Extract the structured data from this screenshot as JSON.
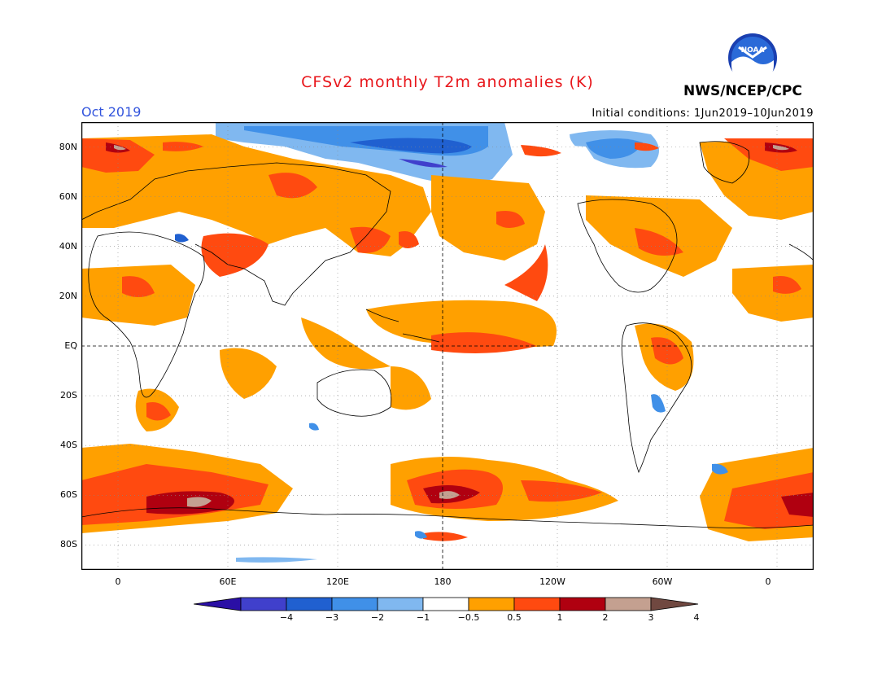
{
  "header": {
    "title": "CFSv2 monthly T2m anomalies (K)",
    "period": "Oct 2019",
    "initial_conditions": "Initial conditions: 1Jun2019–10Jun2019",
    "agency": "NWS/NCEP/CPC",
    "logo_text": "NOAA"
  },
  "map": {
    "type": "global anomaly map",
    "lon_range": [
      -20,
      380
    ],
    "lat_range": [
      -90,
      90
    ],
    "lat_labels": [
      "80N",
      "60N",
      "40N",
      "20N",
      "EQ",
      "20S",
      "40S",
      "60S",
      "80S"
    ],
    "lon_labels": [
      "0",
      "60E",
      "120E",
      "180",
      "120W",
      "60W",
      "0"
    ]
  },
  "colorbar": {
    "labels": [
      "−4",
      "−3",
      "−2",
      "−1",
      "−0.5",
      "0.5",
      "1",
      "2",
      "3",
      "4"
    ],
    "colors": [
      "#2a0fa5",
      "#4040cc",
      "#2060d0",
      "#4090e8",
      "#80b8f0",
      "#ffffff",
      "#ffa000",
      "#ff4a10",
      "#b00010",
      "#c4a090",
      "#704840"
    ]
  }
}
